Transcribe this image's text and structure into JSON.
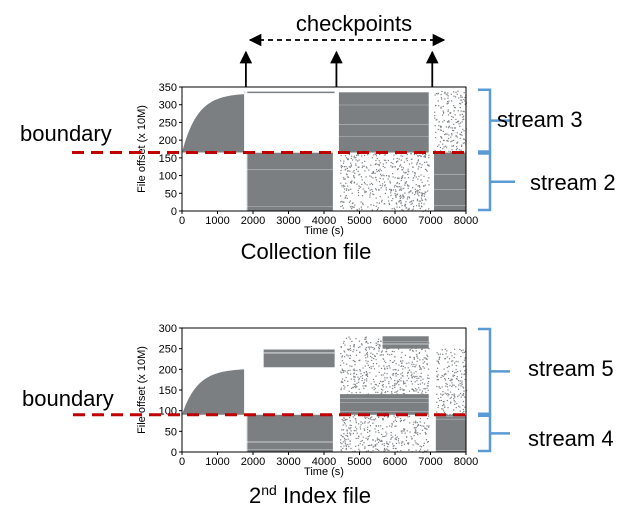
{
  "annotations": {
    "checkpoints": "checkpoints",
    "boundary": "boundary"
  },
  "colors": {
    "scatter": "#7b7f82",
    "boundary_line": "#c00000",
    "bracket": "#5b9bd5",
    "arrow": "#000000"
  },
  "chart_data": [
    {
      "type": "scatter",
      "title": "",
      "caption": "Collection file",
      "xlabel": "Time (s)",
      "ylabel": "File offset (x 10M)",
      "xlim": [
        0,
        8000
      ],
      "ylim": [
        0,
        350
      ],
      "xticks": [
        "0",
        "1000",
        "2000",
        "3000",
        "4000",
        "5000",
        "6000",
        "7000",
        "8000"
      ],
      "yticks": [
        "0",
        "50",
        "100",
        "150",
        "200",
        "250",
        "300",
        "350"
      ],
      "checkpoints_s": [
        1800,
        4350,
        7050
      ],
      "boundary": 165,
      "streams": [
        {
          "label": "stream 3",
          "range": [
            165,
            345
          ]
        },
        {
          "label": "stream 2",
          "range": [
            0,
            165
          ]
        }
      ],
      "series": [
        {
          "kind": "growth",
          "x": [
            0,
            1750
          ],
          "y": [
            165,
            330
          ]
        },
        {
          "kind": "line",
          "x": [
            1750,
            4300
          ],
          "y": [
            335,
            335
          ]
        },
        {
          "kind": "dense",
          "x": [
            1800,
            4250
          ],
          "y": [
            0,
            165
          ]
        },
        {
          "kind": "dense",
          "x": [
            4420,
            6950
          ],
          "y": [
            165,
            335
          ]
        },
        {
          "kind": "sparse",
          "x": [
            4450,
            6950
          ],
          "y": [
            0,
            165
          ]
        },
        {
          "kind": "dense",
          "x": [
            7100,
            8000
          ],
          "y": [
            0,
            165
          ]
        },
        {
          "kind": "sparse",
          "x": [
            7100,
            8000
          ],
          "y": [
            165,
            340
          ]
        }
      ]
    },
    {
      "type": "scatter",
      "title": "",
      "caption_base": "2",
      "caption_sup": "nd",
      "caption_rest": " Index file",
      "xlabel": "Time (s)",
      "ylabel": "File offset (x 10M)",
      "xlim": [
        0,
        8000
      ],
      "ylim": [
        0,
        300
      ],
      "xticks": [
        "0",
        "1000",
        "2000",
        "3000",
        "4000",
        "5000",
        "6000",
        "7000",
        "8000"
      ],
      "yticks": [
        "0",
        "50",
        "100",
        "150",
        "200",
        "250",
        "300"
      ],
      "checkpoints_s": [
        1800,
        4350,
        7050
      ],
      "boundary": 90,
      "streams": [
        {
          "label": "stream 5",
          "range": [
            90,
            300
          ]
        },
        {
          "label": "stream 4",
          "range": [
            0,
            90
          ]
        }
      ],
      "series": [
        {
          "kind": "growth",
          "x": [
            0,
            1750
          ],
          "y": [
            90,
            200
          ]
        },
        {
          "kind": "dense",
          "x": [
            1800,
            4250
          ],
          "y": [
            0,
            90
          ]
        },
        {
          "kind": "dense",
          "x": [
            2300,
            4300
          ],
          "y": [
            205,
            248
          ]
        },
        {
          "kind": "dense",
          "x": [
            4450,
            6950
          ],
          "y": [
            90,
            140
          ]
        },
        {
          "kind": "sparse",
          "x": [
            4450,
            6950
          ],
          "y": [
            140,
            280
          ]
        },
        {
          "kind": "dense",
          "x": [
            5650,
            6950
          ],
          "y": [
            250,
            280
          ]
        },
        {
          "kind": "sparse",
          "x": [
            4450,
            6950
          ],
          "y": [
            0,
            90
          ]
        },
        {
          "kind": "dense",
          "x": [
            7150,
            8000
          ],
          "y": [
            0,
            90
          ]
        },
        {
          "kind": "sparse",
          "x": [
            7150,
            8000
          ],
          "y": [
            90,
            250
          ]
        }
      ]
    }
  ]
}
